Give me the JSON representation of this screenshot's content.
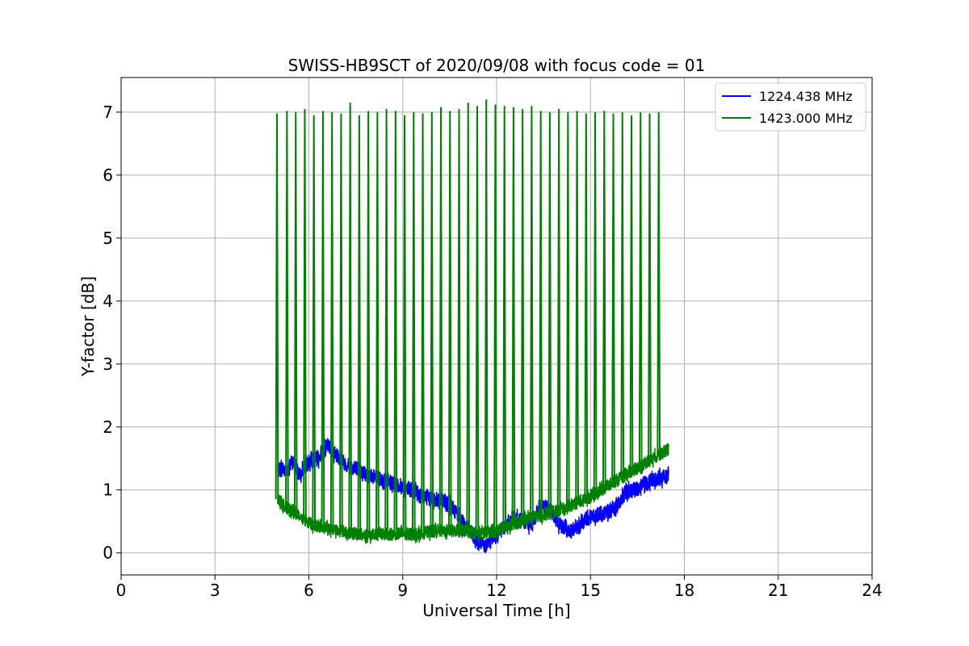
{
  "chart_data": {
    "type": "line",
    "title": "SWISS-HB9SCT of 2020/09/08 with focus code = 01",
    "xlabel": "Universal Time [h]",
    "ylabel": "Y-factor [dB]",
    "xlim": [
      0,
      24
    ],
    "ylim": [
      -0.35,
      7.55
    ],
    "xticks": [
      0,
      3,
      6,
      9,
      12,
      15,
      18,
      21,
      24
    ],
    "yticks": [
      0,
      1,
      2,
      3,
      4,
      5,
      6,
      7
    ],
    "grid": true,
    "legend_position": "top-right",
    "series": [
      {
        "name": "1224.438 MHz",
        "color": "#0000ff",
        "noise": 0.12,
        "x": [
          5.0,
          5.1,
          5.3,
          5.5,
          5.7,
          6.0,
          6.3,
          6.6,
          6.9,
          7.2,
          7.5,
          7.8,
          8.1,
          8.4,
          8.7,
          9.0,
          9.3,
          9.6,
          9.9,
          10.2,
          10.5,
          10.8,
          11.1,
          11.4,
          11.6,
          11.9,
          12.2,
          12.5,
          12.8,
          13.1,
          13.4,
          13.7,
          14.0,
          14.3,
          14.6,
          14.9,
          15.2,
          15.5,
          15.8,
          16.1,
          16.4,
          16.7,
          17.0,
          17.3,
          17.5
        ],
        "y": [
          1.3,
          1.35,
          1.3,
          1.45,
          1.25,
          1.45,
          1.5,
          1.7,
          1.55,
          1.4,
          1.35,
          1.25,
          1.2,
          1.15,
          1.1,
          1.05,
          1.0,
          0.9,
          0.85,
          0.85,
          0.75,
          0.6,
          0.35,
          0.2,
          0.1,
          0.25,
          0.4,
          0.55,
          0.5,
          0.45,
          0.75,
          0.7,
          0.45,
          0.35,
          0.4,
          0.55,
          0.6,
          0.65,
          0.7,
          0.95,
          1.0,
          1.1,
          1.15,
          1.2,
          1.25
        ]
      },
      {
        "name": "1423.000 MHz",
        "color": "#008000",
        "noise": 0.1,
        "x": [
          5.0,
          5.2,
          5.5,
          5.8,
          6.1,
          6.5,
          7.0,
          7.5,
          8.0,
          8.5,
          9.0,
          9.5,
          10.0,
          10.5,
          11.0,
          11.5,
          12.0,
          12.5,
          13.0,
          13.5,
          14.0,
          14.5,
          15.0,
          15.5,
          16.0,
          16.5,
          17.0,
          17.5
        ],
        "y": [
          0.85,
          0.75,
          0.65,
          0.55,
          0.45,
          0.4,
          0.35,
          0.3,
          0.28,
          0.3,
          0.3,
          0.3,
          0.35,
          0.35,
          0.35,
          0.3,
          0.35,
          0.45,
          0.55,
          0.6,
          0.68,
          0.78,
          0.9,
          1.05,
          1.2,
          1.35,
          1.5,
          1.65
        ],
        "spike_times": [
          4.98,
          5.3,
          5.58,
          5.87,
          6.16,
          6.45,
          6.74,
          7.03,
          7.32,
          7.61,
          7.9,
          8.19,
          8.48,
          8.77,
          9.06,
          9.35,
          9.64,
          9.93,
          10.22,
          10.51,
          10.8,
          11.09,
          11.38,
          11.67,
          11.96,
          12.25,
          12.54,
          12.83,
          13.12,
          13.41,
          13.7,
          13.99,
          14.28,
          14.57,
          14.86,
          15.15,
          15.44,
          15.73,
          16.02,
          16.31,
          16.6,
          16.89,
          17.18
        ],
        "spike_peaks": [
          6.98,
          7.02,
          7.0,
          7.05,
          6.95,
          7.02,
          7.0,
          6.98,
          7.15,
          6.95,
          7.02,
          7.0,
          7.05,
          7.02,
          6.95,
          7.0,
          6.98,
          7.0,
          7.08,
          7.02,
          7.05,
          7.15,
          7.1,
          7.2,
          7.12,
          7.1,
          7.08,
          7.05,
          7.1,
          7.02,
          7.0,
          7.05,
          7.0,
          7.02,
          6.98,
          7.0,
          7.02,
          6.98,
          7.0,
          6.95,
          7.0,
          6.98,
          7.0
        ]
      }
    ]
  }
}
